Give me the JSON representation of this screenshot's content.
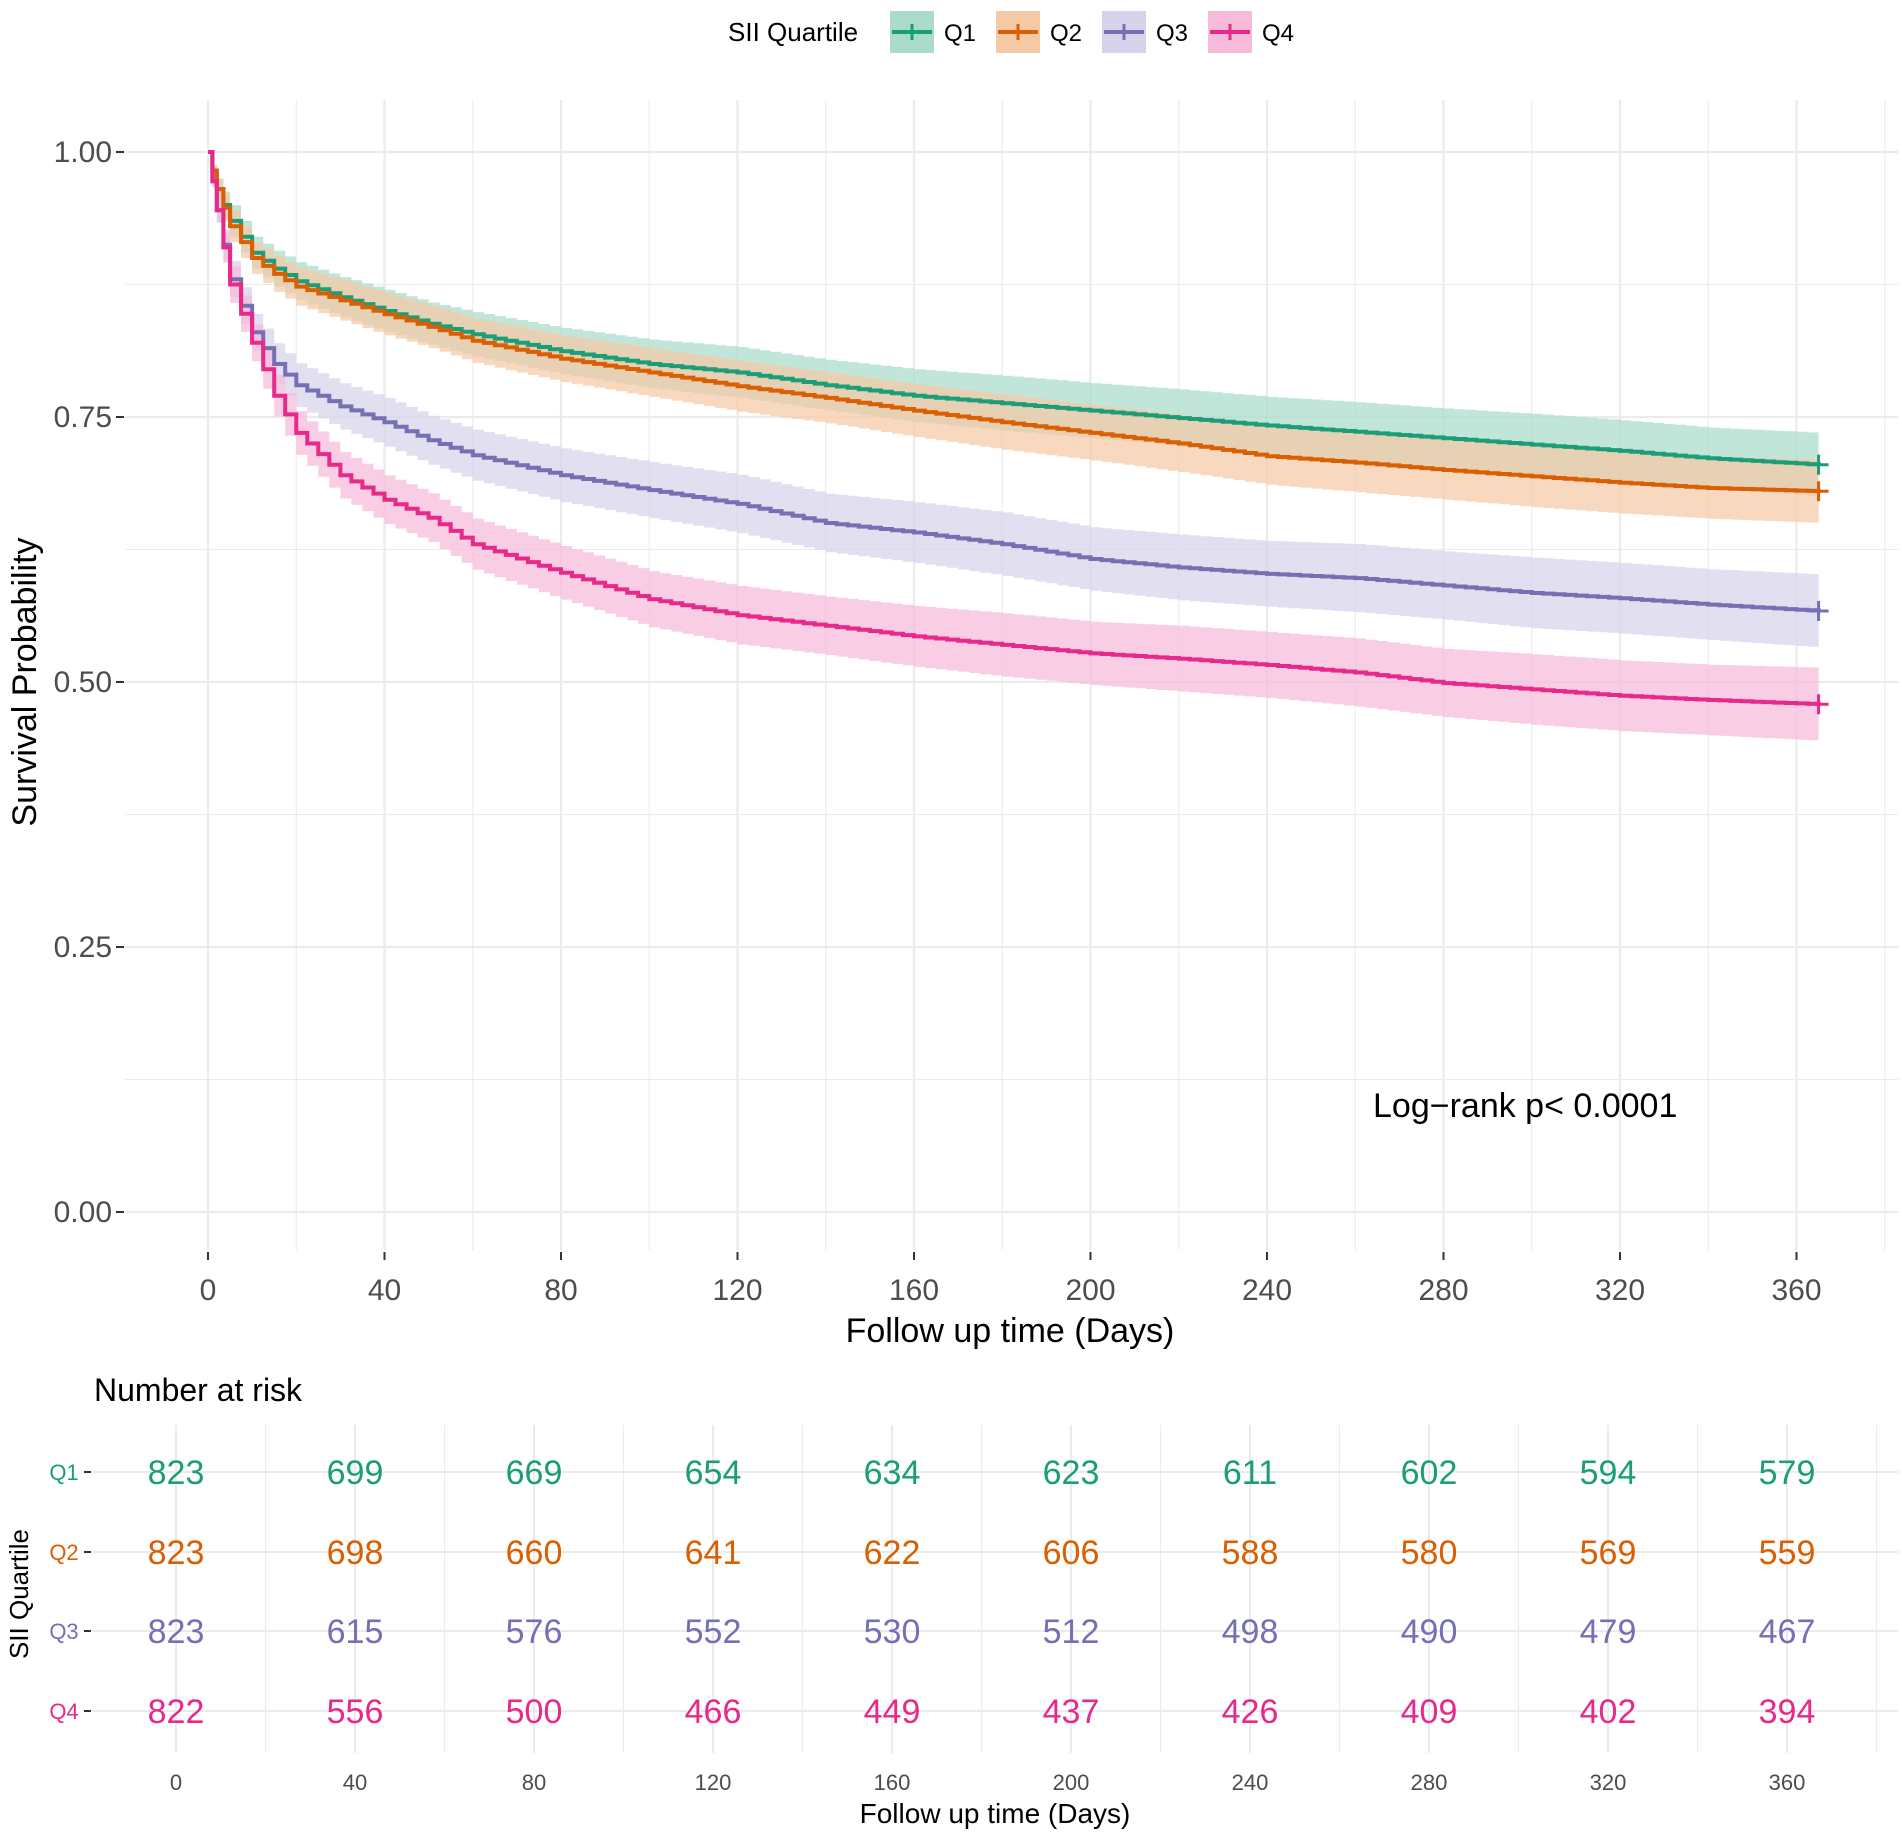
{
  "chart_data": [
    {
      "type": "line",
      "subtype": "kaplan-meier",
      "title": "",
      "xlabel": "Follow up time (Days)",
      "ylabel": "Survival Probability",
      "xlim": [
        0,
        365
      ],
      "ylim": [
        0,
        1
      ],
      "x_ticks": [
        0,
        40,
        80,
        120,
        160,
        200,
        240,
        280,
        320,
        360
      ],
      "y_ticks": [
        0,
        0.25,
        0.5,
        0.75,
        1.0
      ],
      "x_tick_labels": [
        "0",
        "40",
        "80",
        "120",
        "160",
        "200",
        "240",
        "280",
        "320",
        "360"
      ],
      "y_tick_labels": [
        "0.00",
        "0.25",
        "0.50",
        "0.75",
        "1.00"
      ],
      "grid": true,
      "legend": {
        "title": "SII Quartile",
        "position": "top"
      },
      "annotation": "Log−rank p< 0.0001",
      "series": [
        {
          "name": "Q1",
          "color": "#1b9e77",
          "band": "#a9dcca",
          "x": [
            0,
            2,
            5,
            10,
            15,
            20,
            30,
            40,
            50,
            60,
            80,
            100,
            120,
            140,
            160,
            180,
            200,
            220,
            240,
            260,
            280,
            300,
            320,
            340,
            365
          ],
          "y": [
            1.0,
            0.965,
            0.935,
            0.905,
            0.89,
            0.878,
            0.863,
            0.85,
            0.838,
            0.828,
            0.812,
            0.8,
            0.792,
            0.78,
            0.77,
            0.763,
            0.756,
            0.749,
            0.742,
            0.736,
            0.73,
            0.724,
            0.718,
            0.711,
            0.705
          ],
          "lower": [
            1.0,
            0.955,
            0.92,
            0.89,
            0.873,
            0.86,
            0.844,
            0.83,
            0.818,
            0.807,
            0.79,
            0.777,
            0.768,
            0.756,
            0.745,
            0.737,
            0.73,
            0.722,
            0.715,
            0.708,
            0.702,
            0.695,
            0.689,
            0.682,
            0.675
          ],
          "upper": [
            1.0,
            0.975,
            0.95,
            0.92,
            0.907,
            0.896,
            0.882,
            0.87,
            0.858,
            0.849,
            0.834,
            0.823,
            0.816,
            0.804,
            0.795,
            0.789,
            0.782,
            0.776,
            0.769,
            0.764,
            0.758,
            0.753,
            0.747,
            0.74,
            0.735
          ]
        },
        {
          "name": "Q2",
          "color": "#d95f02",
          "band": "#f5c9a6",
          "x": [
            0,
            2,
            5,
            10,
            15,
            20,
            30,
            40,
            50,
            60,
            80,
            100,
            120,
            140,
            160,
            180,
            200,
            220,
            240,
            260,
            280,
            300,
            320,
            340,
            365
          ],
          "y": [
            1.0,
            0.965,
            0.93,
            0.9,
            0.885,
            0.873,
            0.86,
            0.847,
            0.835,
            0.822,
            0.805,
            0.792,
            0.779,
            0.768,
            0.756,
            0.745,
            0.735,
            0.725,
            0.713,
            0.707,
            0.7,
            0.694,
            0.688,
            0.683,
            0.68
          ]
        },
        {
          "name": "Q3",
          "color": "#7570b3",
          "band": "#d6d3ea",
          "x": [
            0,
            2,
            5,
            10,
            15,
            20,
            30,
            40,
            50,
            60,
            80,
            100,
            120,
            140,
            160,
            180,
            200,
            220,
            240,
            260,
            280,
            300,
            320,
            340,
            365
          ],
          "y": [
            1.0,
            0.945,
            0.88,
            0.83,
            0.8,
            0.78,
            0.76,
            0.745,
            0.728,
            0.714,
            0.695,
            0.681,
            0.668,
            0.65,
            0.641,
            0.63,
            0.616,
            0.608,
            0.602,
            0.598,
            0.591,
            0.584,
            0.579,
            0.573,
            0.567
          ]
        },
        {
          "name": "Q4",
          "color": "#e7298a",
          "band": "#f7bbd9",
          "x": [
            0,
            2,
            5,
            10,
            15,
            20,
            30,
            40,
            50,
            60,
            80,
            100,
            120,
            140,
            160,
            180,
            200,
            220,
            240,
            260,
            280,
            300,
            320,
            340,
            365
          ],
          "y": [
            1.0,
            0.945,
            0.875,
            0.82,
            0.77,
            0.735,
            0.695,
            0.672,
            0.655,
            0.63,
            0.603,
            0.578,
            0.563,
            0.553,
            0.543,
            0.535,
            0.527,
            0.522,
            0.516,
            0.509,
            0.499,
            0.493,
            0.487,
            0.483,
            0.479
          ]
        }
      ]
    },
    {
      "type": "table",
      "title": "Number at risk",
      "xlabel": "Follow up time (Days)",
      "ylabel": "SII Quartile",
      "columns": [
        "0",
        "40",
        "80",
        "120",
        "160",
        "200",
        "240",
        "280",
        "320",
        "360"
      ],
      "rows": [
        {
          "name": "Q1",
          "color": "#1b9e77",
          "values": [
            823,
            699,
            669,
            654,
            634,
            623,
            611,
            602,
            594,
            579
          ]
        },
        {
          "name": "Q2",
          "color": "#d95f02",
          "values": [
            823,
            698,
            660,
            641,
            622,
            606,
            588,
            580,
            569,
            559
          ]
        },
        {
          "name": "Q3",
          "color": "#7570b3",
          "values": [
            823,
            615,
            576,
            552,
            530,
            512,
            498,
            490,
            479,
            467
          ]
        },
        {
          "name": "Q4",
          "color": "#e7298a",
          "values": [
            822,
            556,
            500,
            466,
            449,
            437,
            426,
            409,
            402,
            394
          ]
        }
      ]
    }
  ]
}
